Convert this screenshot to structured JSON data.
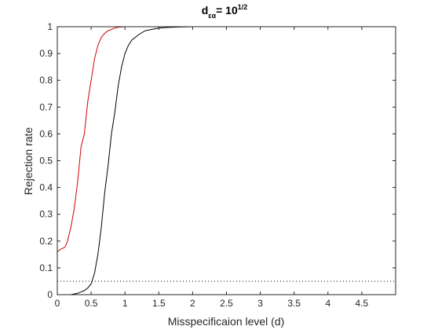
{
  "chart_data": {
    "type": "line",
    "title": {
      "base": "d",
      "subscript": "εα",
      "middle": "= 10",
      "superscript": "1/2"
    },
    "xlabel": "Misspecificaion level (d)",
    "ylabel": "Rejection rate",
    "xlim": [
      0,
      5
    ],
    "ylim": [
      0,
      1
    ],
    "xticks": [
      0,
      0.5,
      1,
      1.5,
      2,
      2.5,
      3,
      3.5,
      4,
      4.5
    ],
    "xtick_labels": [
      "0",
      "0.5",
      "1",
      "1.5",
      "2",
      "2.5",
      "3",
      "3.5",
      "4",
      "4.5"
    ],
    "yticks": [
      0,
      0.1,
      0.2,
      0.3,
      0.4,
      0.5,
      0.6,
      0.7,
      0.8,
      0.9,
      1
    ],
    "ytick_labels": [
      "0",
      "0.1",
      "0.2",
      "0.3",
      "0.4",
      "0.5",
      "0.6",
      "0.7",
      "0.8",
      "0.9",
      "1"
    ],
    "grid": false,
    "box": true,
    "reference_line": {
      "y": 0.05,
      "style": "dotted",
      "color": "#000000"
    },
    "series": [
      {
        "color": "#d40000",
        "x": [
          0,
          0.05,
          0.1,
          0.12,
          0.15,
          0.2,
          0.25,
          0.3,
          0.35,
          0.4,
          0.45,
          0.5,
          0.55,
          0.6,
          0.65,
          0.7,
          0.75,
          0.8,
          0.85,
          0.9,
          1,
          1.1,
          1.2,
          1.5,
          2,
          3,
          4,
          5
        ],
        "y": [
          0.16,
          0.17,
          0.175,
          0.18,
          0.2,
          0.25,
          0.32,
          0.42,
          0.55,
          0.6,
          0.72,
          0.8,
          0.88,
          0.93,
          0.96,
          0.975,
          0.985,
          0.99,
          0.995,
          0.998,
          1,
          1,
          1,
          1,
          1,
          1,
          1,
          1
        ]
      },
      {
        "color": "#000000",
        "x": [
          0,
          0.1,
          0.2,
          0.3,
          0.35,
          0.4,
          0.45,
          0.5,
          0.55,
          0.6,
          0.65,
          0.7,
          0.75,
          0.8,
          0.85,
          0.9,
          0.95,
          1,
          1.05,
          1.1,
          1.2,
          1.3,
          1.4,
          1.5,
          1.6,
          1.8,
          2,
          3,
          4,
          5
        ],
        "y": [
          0,
          0,
          0,
          0.005,
          0.01,
          0.015,
          0.025,
          0.04,
          0.08,
          0.15,
          0.25,
          0.38,
          0.48,
          0.6,
          0.68,
          0.78,
          0.85,
          0.9,
          0.93,
          0.95,
          0.97,
          0.985,
          0.99,
          0.995,
          0.997,
          0.999,
          1,
          1,
          1,
          1
        ]
      }
    ]
  }
}
